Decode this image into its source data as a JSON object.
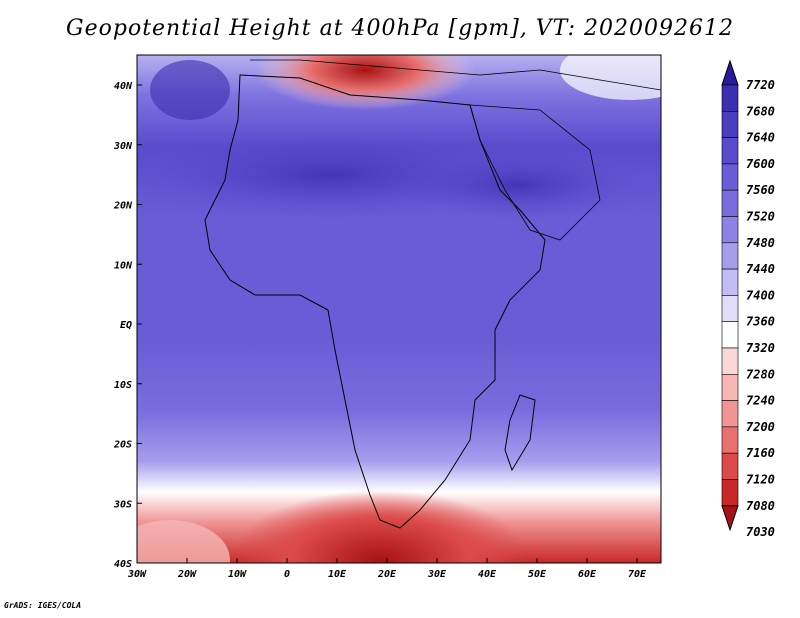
{
  "title": "Geopotential Height at 400hPa [gpm], VT: 2020092612",
  "credit": "GrADS: IGES/COLA",
  "map": {
    "lon_ticks": [
      "30W",
      "20W",
      "10W",
      "0",
      "10E",
      "20E",
      "30E",
      "40E",
      "50E",
      "60E",
      "70E"
    ],
    "lat_ticks": [
      "40N",
      "30N",
      "20N",
      "10N",
      "EQ",
      "10S",
      "20S",
      "30S",
      "40S"
    ],
    "lon_range": [
      -30,
      75
    ],
    "lat_range": [
      -40,
      45
    ]
  },
  "colorbar": {
    "levels": [
      "7720",
      "7680",
      "7640",
      "7600",
      "7560",
      "7520",
      "7480",
      "7440",
      "7400",
      "7360",
      "7320",
      "7280",
      "7240",
      "7200",
      "7160",
      "7120",
      "7080",
      "7030"
    ],
    "colors": [
      "#2a1a9c",
      "#3b2eb0",
      "#4a3dc0",
      "#5a4bcc",
      "#6a5bd6",
      "#7a6cde",
      "#8e82e6",
      "#a79ded",
      "#c4bdf3",
      "#e2defa",
      "#ffffff",
      "#fbd8d8",
      "#f6b6b6",
      "#f09494",
      "#e87070",
      "#dc4a4a",
      "#c82828",
      "#a81212"
    ]
  }
}
